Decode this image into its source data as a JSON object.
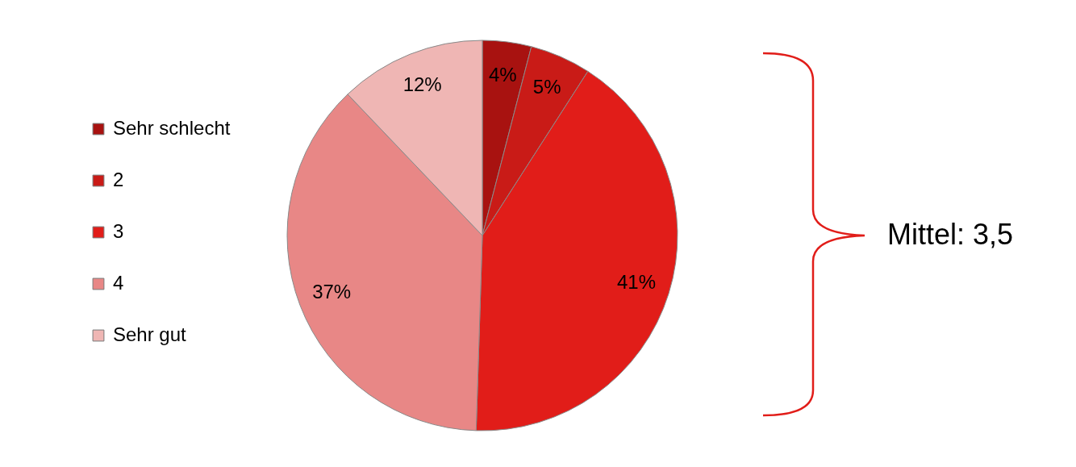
{
  "chart_data": {
    "type": "pie",
    "categories": [
      "Sehr schlecht",
      "2",
      "3",
      "4",
      "Sehr gut"
    ],
    "values": [
      4,
      5,
      41,
      37,
      12
    ],
    "colors": [
      "#a81210",
      "#c91b17",
      "#e11d19",
      "#e88786",
      "#efb6b4"
    ],
    "value_labels": [
      "4%",
      "5%",
      "41%",
      "37%",
      "12%"
    ],
    "legend": "left",
    "annotations": [
      "Mittel: 3,5"
    ]
  }
}
